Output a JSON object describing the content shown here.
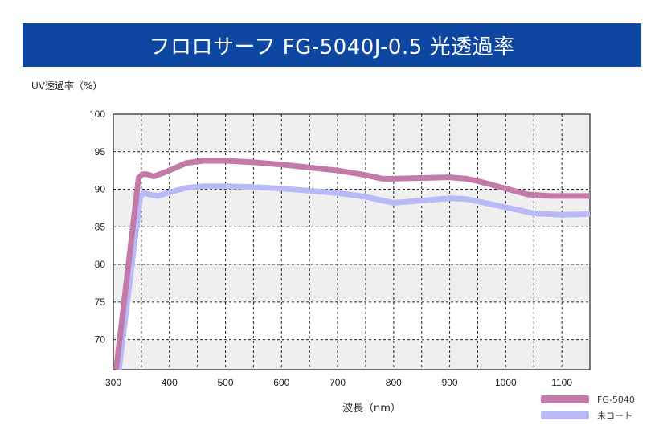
{
  "title": "フロロサーフ FG-5040J-0.5 光透過率",
  "chart_data": {
    "type": "line",
    "ylabel": "UV透過率（%）",
    "xlabel": "波長（nm）",
    "xlim": [
      300,
      1150
    ],
    "ylim": [
      66,
      100
    ],
    "x_ticks": [
      300,
      400,
      500,
      600,
      700,
      800,
      900,
      1000,
      1100
    ],
    "y_ticks": [
      70,
      75,
      80,
      85,
      90,
      95,
      100
    ],
    "grid": true,
    "legend_position": "bottom-right",
    "series": [
      {
        "name": "FG-5040",
        "color": "#c27aa8",
        "x": [
          305,
          345,
          352,
          360,
          372,
          400,
          430,
          460,
          500,
          550,
          600,
          650,
          700,
          750,
          780,
          800,
          850,
          900,
          930,
          950,
          1000,
          1040,
          1080,
          1150
        ],
        "y": [
          66,
          91.5,
          92,
          92,
          91.7,
          92.5,
          93.5,
          93.8,
          93.8,
          93.6,
          93.3,
          92.9,
          92.5,
          91.9,
          91.4,
          91.4,
          91.5,
          91.6,
          91.4,
          91.1,
          90.1,
          89.3,
          89.1,
          89.1
        ]
      },
      {
        "name": "未コート",
        "color": "#b9b9f7",
        "x": [
          310,
          348,
          355,
          365,
          380,
          400,
          430,
          460,
          500,
          550,
          600,
          650,
          700,
          750,
          780,
          800,
          850,
          900,
          930,
          950,
          1000,
          1050,
          1100,
          1150
        ],
        "y": [
          66,
          89,
          89.5,
          89.3,
          89.1,
          89.6,
          90.2,
          90.4,
          90.4,
          90.3,
          90.1,
          89.8,
          89.5,
          89,
          88.5,
          88.2,
          88.5,
          88.8,
          88.7,
          88.4,
          87.6,
          86.8,
          86.6,
          86.7
        ]
      }
    ]
  }
}
